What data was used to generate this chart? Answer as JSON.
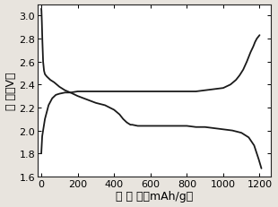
{
  "discharge_x": [
    0,
    1,
    3,
    6,
    10,
    15,
    20,
    30,
    50,
    70,
    100,
    130,
    160,
    200,
    250,
    300,
    350,
    400,
    430,
    450,
    470,
    490,
    500,
    530,
    560,
    600,
    650,
    700,
    750,
    800,
    850,
    900,
    950,
    1000,
    1050,
    1100,
    1140,
    1170,
    1195,
    1210
  ],
  "discharge_y": [
    3.06,
    3.04,
    2.95,
    2.78,
    2.6,
    2.52,
    2.49,
    2.47,
    2.44,
    2.42,
    2.38,
    2.35,
    2.33,
    2.3,
    2.27,
    2.24,
    2.22,
    2.18,
    2.14,
    2.1,
    2.07,
    2.05,
    2.05,
    2.04,
    2.04,
    2.04,
    2.04,
    2.04,
    2.04,
    2.04,
    2.03,
    2.03,
    2.02,
    2.01,
    2.0,
    1.98,
    1.94,
    1.87,
    1.75,
    1.67
  ],
  "charge_x": [
    0,
    5,
    20,
    40,
    60,
    80,
    100,
    130,
    160,
    200,
    250,
    300,
    350,
    400,
    450,
    500,
    550,
    600,
    650,
    700,
    750,
    800,
    850,
    900,
    950,
    1000,
    1040,
    1070,
    1090,
    1110,
    1130,
    1150,
    1165,
    1175,
    1185,
    1200
  ],
  "charge_y": [
    1.8,
    1.95,
    2.1,
    2.22,
    2.28,
    2.31,
    2.32,
    2.33,
    2.33,
    2.34,
    2.34,
    2.34,
    2.34,
    2.34,
    2.34,
    2.34,
    2.34,
    2.34,
    2.34,
    2.34,
    2.34,
    2.34,
    2.34,
    2.35,
    2.36,
    2.37,
    2.4,
    2.44,
    2.48,
    2.53,
    2.6,
    2.68,
    2.73,
    2.77,
    2.8,
    2.83
  ],
  "xlim": [
    -20,
    1260
  ],
  "ylim": [
    1.6,
    3.1
  ],
  "xticks": [
    0,
    200,
    400,
    600,
    800,
    1000,
    1200
  ],
  "yticks": [
    1.6,
    1.8,
    2.0,
    2.2,
    2.4,
    2.6,
    2.8,
    3.0
  ],
  "xlabel": "比 容 量（mAh/g）",
  "ylabel": "电 压（V）",
  "line_color": "#1a1a1a",
  "plot_bg_color": "#ffffff",
  "figure_bg_color": "#e8e4de",
  "line_width": 1.3,
  "xlabel_fontsize": 9,
  "ylabel_fontsize": 9,
  "tick_fontsize": 8
}
